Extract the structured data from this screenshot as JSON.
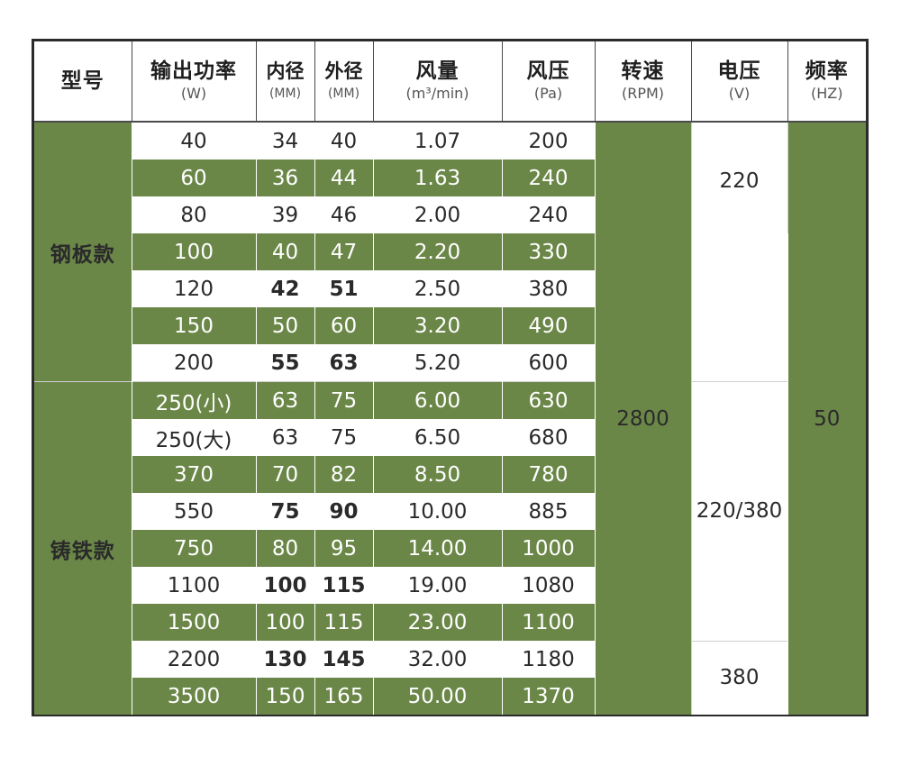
{
  "headers": {
    "model": {
      "main": "型号",
      "unit": ""
    },
    "power": {
      "main": "输出功率",
      "unit": "(W)"
    },
    "inner": {
      "main": "内径",
      "unit": "(MM)"
    },
    "outer": {
      "main": "外径",
      "unit": "(MM)"
    },
    "airflow": {
      "main": "风量",
      "unit": "(m³/min)"
    },
    "pressure": {
      "main": "风压",
      "unit": "(Pa)"
    },
    "speed": {
      "main": "转速",
      "unit": "(RPM)"
    },
    "voltage": {
      "main": "电压",
      "unit": "(V)"
    },
    "frequency": {
      "main": "频率",
      "unit": "(HZ)"
    }
  },
  "groups": {
    "steel": "钢板款",
    "cast_iron": "铸铁款"
  },
  "spans": {
    "speed": "2800",
    "frequency": "50",
    "voltage_a": "220",
    "voltage_b": "220/380",
    "voltage_c": "380"
  },
  "rows": [
    {
      "power": "40",
      "inner": "34",
      "outer": "40",
      "airflow": "1.07",
      "pressure": "200"
    },
    {
      "power": "60",
      "inner": "36",
      "outer": "44",
      "airflow": "1.63",
      "pressure": "240"
    },
    {
      "power": "80",
      "inner": "39",
      "outer": "46",
      "airflow": "2.00",
      "pressure": "240"
    },
    {
      "power": "100",
      "inner": "40",
      "outer": "47",
      "airflow": "2.20",
      "pressure": "330"
    },
    {
      "power": "120",
      "inner": "42",
      "outer": "51",
      "airflow": "2.50",
      "pressure": "380"
    },
    {
      "power": "150",
      "inner": "50",
      "outer": "60",
      "airflow": "3.20",
      "pressure": "490"
    },
    {
      "power": "200",
      "inner": "55",
      "outer": "63",
      "airflow": "5.20",
      "pressure": "600"
    },
    {
      "power": "250(小)",
      "inner": "63",
      "outer": "75",
      "airflow": "6.00",
      "pressure": "630"
    },
    {
      "power": "250(大)",
      "inner": "63",
      "outer": "75",
      "airflow": "6.50",
      "pressure": "680"
    },
    {
      "power": "370",
      "inner": "70",
      "outer": "82",
      "airflow": "8.50",
      "pressure": "780"
    },
    {
      "power": "550",
      "inner": "75",
      "outer": "90",
      "airflow": "10.00",
      "pressure": "885"
    },
    {
      "power": "750",
      "inner": "80",
      "outer": "95",
      "airflow": "14.00",
      "pressure": "1000"
    },
    {
      "power": "1100",
      "inner": "100",
      "outer": "115",
      "airflow": "19.00",
      "pressure": "1080"
    },
    {
      "power": "1500",
      "inner": "100",
      "outer": "115",
      "airflow": "23.00",
      "pressure": "1100"
    },
    {
      "power": "2200",
      "inner": "130",
      "outer": "145",
      "airflow": "32.00",
      "pressure": "1180"
    },
    {
      "power": "3500",
      "inner": "150",
      "outer": "165",
      "airflow": "50.00",
      "pressure": "1370"
    }
  ]
}
